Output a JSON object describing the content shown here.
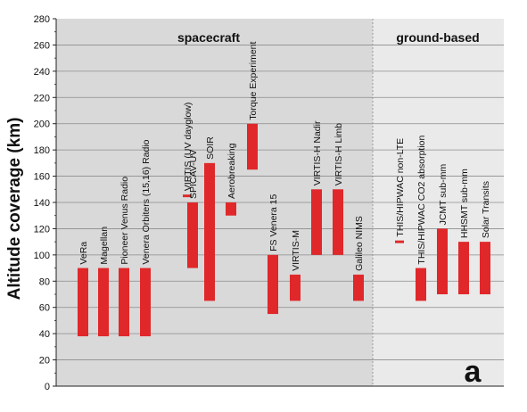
{
  "chart_data": {
    "type": "bar",
    "ylabel": "Altitude coverage (km)",
    "ylim": [
      0,
      280
    ],
    "yticks": [
      0,
      20,
      40,
      60,
      80,
      100,
      120,
      140,
      160,
      180,
      200,
      220,
      240,
      260,
      280
    ],
    "grid": true,
    "panel_label": "a",
    "regions": [
      {
        "label": "spacecraft",
        "color": "#d9d9d9"
      },
      {
        "label": "ground-based",
        "color": "#eaeaea"
      }
    ],
    "bar_color": "#e0282a",
    "series": [
      {
        "label": "VeRa",
        "region": "spacecraft",
        "low": 38,
        "high": 90
      },
      {
        "label": "Magellan",
        "region": "spacecraft",
        "low": 38,
        "high": 90
      },
      {
        "label": "Pioneer Venus Radio",
        "region": "spacecraft",
        "low": 38,
        "high": 90
      },
      {
        "label": "Venera Orbiters (15,16) Radio",
        "region": "spacecraft",
        "low": 38,
        "high": 90
      },
      {
        "label": "SPICAV-UV",
        "region": "spacecraft",
        "low": 90,
        "high": 140
      },
      {
        "label": "VIRTIS (UV dayglow)",
        "region": "spacecraft",
        "low": 144,
        "high": 146
      },
      {
        "label": "SOIR",
        "region": "spacecraft",
        "low": 65,
        "high": 170
      },
      {
        "label": "Aerobreaking",
        "region": "spacecraft",
        "low": 130,
        "high": 140
      },
      {
        "label": "Torque Experiment",
        "region": "spacecraft",
        "low": 165,
        "high": 200
      },
      {
        "label": "FS Venera 15",
        "region": "spacecraft",
        "low": 55,
        "high": 100
      },
      {
        "label": "VIRTIS-M",
        "region": "spacecraft",
        "low": 65,
        "high": 85
      },
      {
        "label": "VIRTIS-H Nadir",
        "region": "spacecraft",
        "low": 100,
        "high": 150
      },
      {
        "label": "VIRTIS-H Limb",
        "region": "spacecraft",
        "low": 100,
        "high": 150
      },
      {
        "label": "Galileo NIMS",
        "region": "spacecraft",
        "low": 65,
        "high": 85
      },
      {
        "label": "THIS/HIPWAC non-LTE",
        "region": "ground-based",
        "low": 109,
        "high": 111
      },
      {
        "label": "THIS/HIPWAC CO2 absorption",
        "region": "ground-based",
        "low": 65,
        "high": 90
      },
      {
        "label": "JCMT sub-mm",
        "region": "ground-based",
        "low": 70,
        "high": 120
      },
      {
        "label": "HHSMT sub-mm",
        "region": "ground-based",
        "low": 70,
        "high": 110
      },
      {
        "label": "Solar Transits",
        "region": "ground-based",
        "low": 70,
        "high": 110
      }
    ]
  }
}
